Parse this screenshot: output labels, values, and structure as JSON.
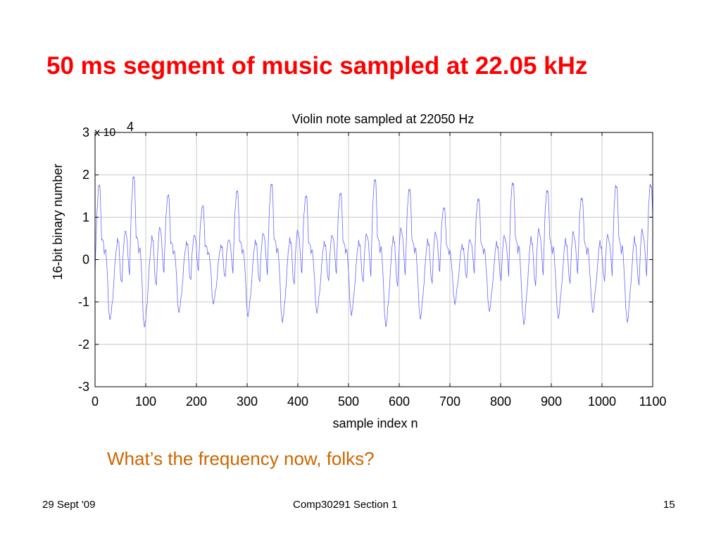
{
  "slide": {
    "title": "50 ms segment of music sampled at 22.05 kHz",
    "question": "What’s the frequency now, folks?",
    "footer": {
      "date": "29 Sept '09",
      "course": "Comp30291 Section 1",
      "page": "15"
    }
  },
  "colors": {
    "title": "#ff0000",
    "question": "#cc6600",
    "signal": "#6666ff",
    "grid": "#c8c8c8"
  },
  "chart_data": {
    "type": "line",
    "title": "Violin note sampled at 22050 Hz",
    "xlabel": "sample index n",
    "ylabel": "16-bit binary number",
    "y_scale_label": "x 10",
    "y_scale_exponent": "4",
    "xlim": [
      0,
      1100
    ],
    "ylim": [
      -3,
      3
    ],
    "xticks": [
      "0",
      "100",
      "200",
      "300",
      "400",
      "500",
      "600",
      "700",
      "800",
      "900",
      "1000",
      "1100"
    ],
    "yticks": [
      "3",
      "2",
      "1",
      "0",
      "-1",
      "-2",
      "-3"
    ],
    "grid": true,
    "period_samples": 68,
    "waveform_shape": [
      [
        0,
        -0.3
      ],
      [
        4,
        1.1
      ],
      [
        7,
        1.65
      ],
      [
        10,
        1.5
      ],
      [
        13,
        0.5
      ],
      [
        16,
        0.4
      ],
      [
        18,
        0.1
      ],
      [
        21,
        0.3
      ],
      [
        24,
        -0.3
      ],
      [
        27,
        -1.1
      ],
      [
        30,
        -1.3
      ],
      [
        32,
        -1.2
      ],
      [
        35,
        -0.8
      ],
      [
        38,
        -0.3
      ],
      [
        41,
        0.1
      ],
      [
        44,
        0.5
      ],
      [
        47,
        0.3
      ],
      [
        50,
        -0.3
      ],
      [
        53,
        -0.5
      ],
      [
        56,
        0.2
      ],
      [
        59,
        0.7
      ],
      [
        62,
        0.5
      ],
      [
        65,
        0.1
      ],
      [
        68,
        -0.3
      ]
    ],
    "num_samples": 1100,
    "series": [
      {
        "name": "",
        "x": [
          0,
          1100
        ],
        "y": [
          -1.6,
          1.97
        ]
      }
    ]
  }
}
